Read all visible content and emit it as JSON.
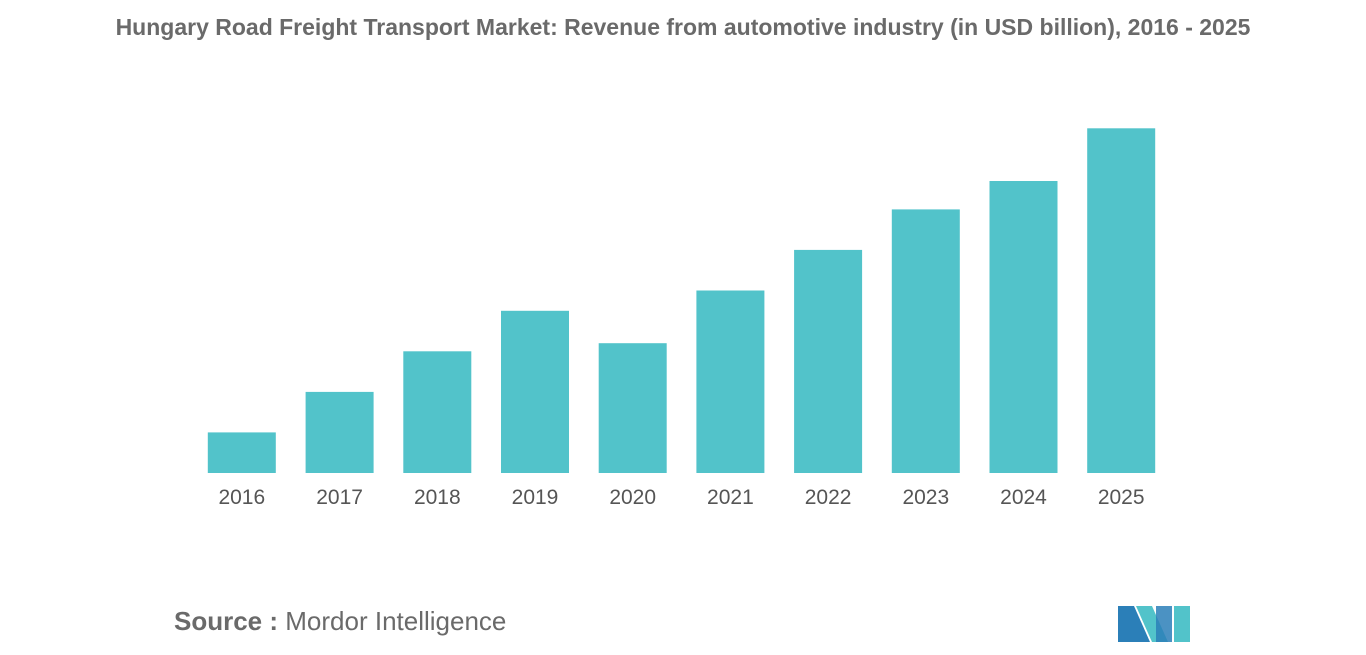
{
  "chart_data": {
    "type": "bar",
    "title": "Hungary Road Freight Transport Market: Revenue from automotive industry (in USD billion), 2016 - 2025",
    "categories": [
      "2016",
      "2017",
      "2018",
      "2019",
      "2020",
      "2021",
      "2022",
      "2023",
      "2024",
      "2025"
    ],
    "values": [
      1.0,
      2.0,
      3.0,
      4.0,
      3.2,
      4.5,
      5.5,
      6.5,
      7.2,
      8.5
    ],
    "ylim": [
      0,
      9
    ],
    "xlabel": "",
    "ylabel": "",
    "grid": false,
    "legend": "none",
    "bar_color": "#52c3ca"
  },
  "source": {
    "label": "Source :",
    "text": "Mordor Intelligence"
  },
  "logo": {
    "icon": "mordor-intelligence-logo-icon",
    "colors": [
      "#2b7fb8",
      "#52c3ca"
    ]
  }
}
